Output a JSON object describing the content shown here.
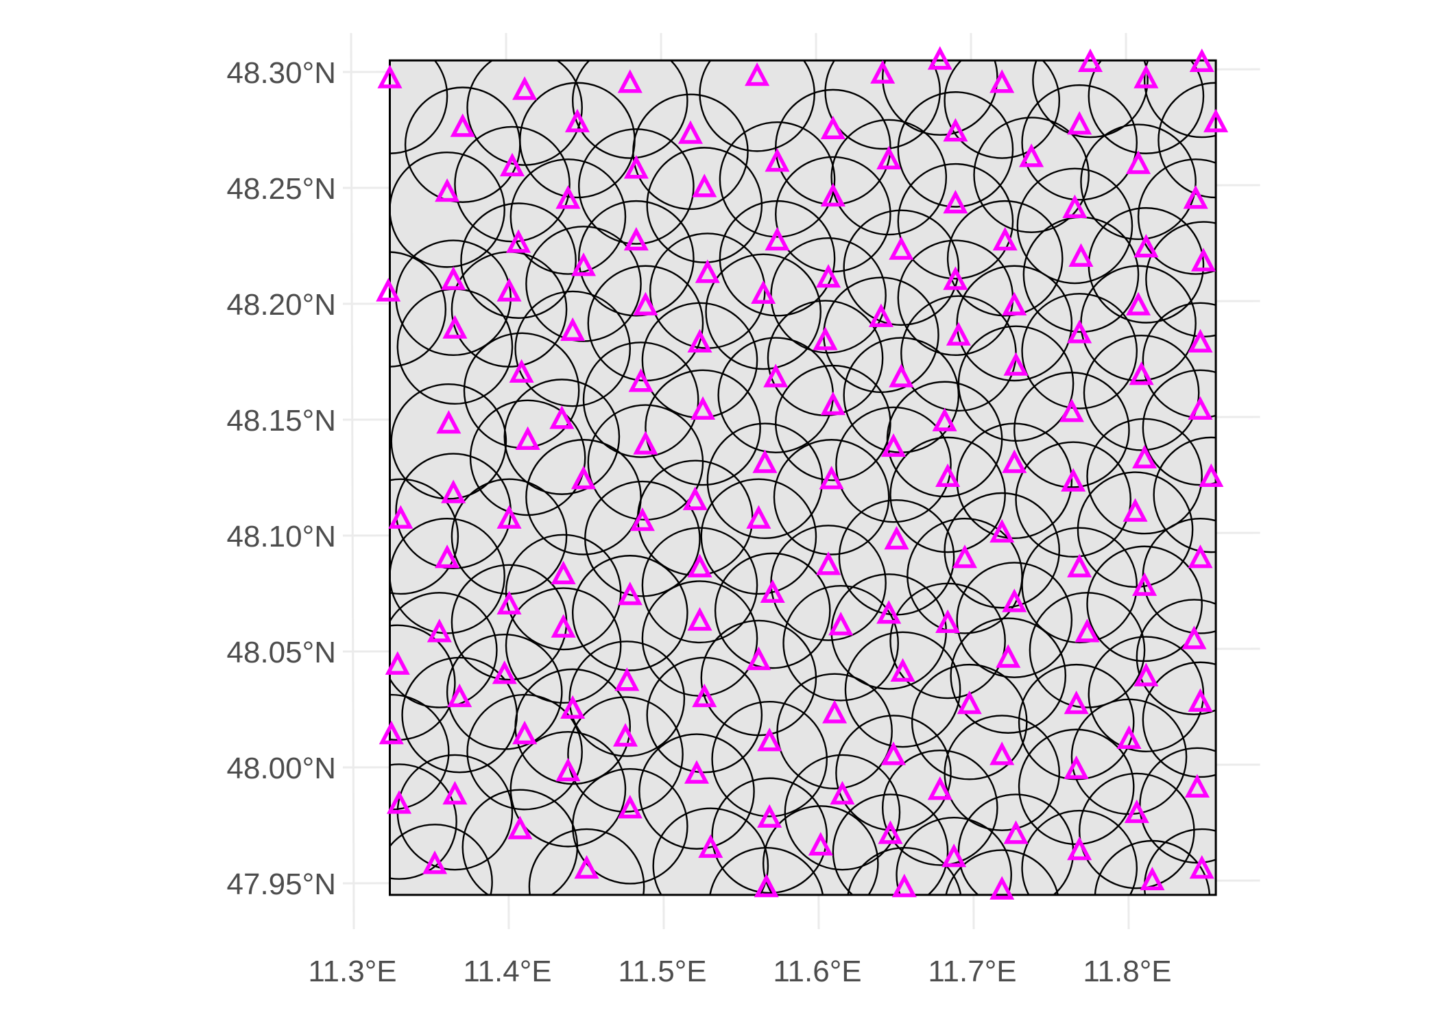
{
  "chart_data": {
    "type": "scatter",
    "title": "",
    "xlabel": "",
    "ylabel": "",
    "xlim": [
      11.3,
      11.86
    ],
    "ylim": [
      47.945,
      48.305
    ],
    "x_ticks": [
      {
        "value": 11.3,
        "label": "11.3°E"
      },
      {
        "value": 11.4,
        "label": "11.4°E"
      },
      {
        "value": 11.5,
        "label": "11.5°E"
      },
      {
        "value": 11.6,
        "label": "11.6°E"
      },
      {
        "value": 11.7,
        "label": "11.7°E"
      },
      {
        "value": 11.8,
        "label": "11.8°E"
      }
    ],
    "y_ticks": [
      {
        "value": 47.95,
        "label": "47.95°N"
      },
      {
        "value": 48.0,
        "label": "48.00°N"
      },
      {
        "value": 48.05,
        "label": "48.05°N"
      },
      {
        "value": 48.1,
        "label": "48.10°N"
      },
      {
        "value": 48.15,
        "label": "48.15°N"
      },
      {
        "value": 48.2,
        "label": "48.20°N"
      },
      {
        "value": 48.25,
        "label": "48.25°N"
      },
      {
        "value": 48.3,
        "label": "48.30°N"
      }
    ],
    "grid": true,
    "bbox_extent": {
      "lon": [
        11.325,
        11.858
      ],
      "lat": [
        47.945,
        48.305
      ]
    },
    "buffer_radius_deg_lon": 0.037,
    "colors": {
      "fill": "#e5e5e5",
      "buffer_stroke": "#000000",
      "point": "#ff00ff",
      "grid": "#ebebeb",
      "axis_text": "#4d4d4d"
    },
    "marker": "open-triangle",
    "points": [
      [
        11.325,
        48.297
      ],
      [
        11.412,
        48.292
      ],
      [
        11.48,
        48.295
      ],
      [
        11.562,
        48.298
      ],
      [
        11.643,
        48.299
      ],
      [
        11.68,
        48.305
      ],
      [
        11.72,
        48.295
      ],
      [
        11.777,
        48.304
      ],
      [
        11.813,
        48.297
      ],
      [
        11.849,
        48.304
      ],
      [
        11.372,
        48.276
      ],
      [
        11.446,
        48.278
      ],
      [
        11.519,
        48.273
      ],
      [
        11.611,
        48.275
      ],
      [
        11.69,
        48.274
      ],
      [
        11.77,
        48.277
      ],
      [
        11.858,
        48.278
      ],
      [
        11.404,
        48.259
      ],
      [
        11.484,
        48.258
      ],
      [
        11.575,
        48.261
      ],
      [
        11.647,
        48.262
      ],
      [
        11.739,
        48.263
      ],
      [
        11.808,
        48.26
      ],
      [
        11.362,
        48.248
      ],
      [
        11.44,
        48.245
      ],
      [
        11.528,
        48.25
      ],
      [
        11.611,
        48.246
      ],
      [
        11.69,
        48.243
      ],
      [
        11.767,
        48.241
      ],
      [
        11.845,
        48.245
      ],
      [
        11.408,
        48.226
      ],
      [
        11.484,
        48.227
      ],
      [
        11.575,
        48.227
      ],
      [
        11.655,
        48.223
      ],
      [
        11.722,
        48.227
      ],
      [
        11.771,
        48.22
      ],
      [
        11.813,
        48.224
      ],
      [
        11.85,
        48.218
      ],
      [
        11.324,
        48.205
      ],
      [
        11.366,
        48.21
      ],
      [
        11.402,
        48.205
      ],
      [
        11.45,
        48.216
      ],
      [
        11.53,
        48.213
      ],
      [
        11.566,
        48.204
      ],
      [
        11.608,
        48.211
      ],
      [
        11.69,
        48.21
      ],
      [
        11.728,
        48.199
      ],
      [
        11.808,
        48.199
      ],
      [
        11.49,
        48.199
      ],
      [
        11.642,
        48.194
      ],
      [
        11.367,
        48.189
      ],
      [
        11.443,
        48.188
      ],
      [
        11.525,
        48.183
      ],
      [
        11.606,
        48.184
      ],
      [
        11.692,
        48.186
      ],
      [
        11.77,
        48.187
      ],
      [
        11.848,
        48.183
      ],
      [
        11.41,
        48.17
      ],
      [
        11.487,
        48.166
      ],
      [
        11.574,
        48.168
      ],
      [
        11.655,
        48.168
      ],
      [
        11.729,
        48.173
      ],
      [
        11.81,
        48.169
      ],
      [
        11.363,
        48.148
      ],
      [
        11.436,
        48.15
      ],
      [
        11.527,
        48.154
      ],
      [
        11.611,
        48.156
      ],
      [
        11.683,
        48.149
      ],
      [
        11.765,
        48.153
      ],
      [
        11.848,
        48.154
      ],
      [
        11.414,
        48.141
      ],
      [
        11.49,
        48.139
      ],
      [
        11.567,
        48.131
      ],
      [
        11.65,
        48.138
      ],
      [
        11.728,
        48.131
      ],
      [
        11.812,
        48.133
      ],
      [
        11.366,
        48.118
      ],
      [
        11.45,
        48.124
      ],
      [
        11.522,
        48.115
      ],
      [
        11.61,
        48.124
      ],
      [
        11.685,
        48.125
      ],
      [
        11.766,
        48.123
      ],
      [
        11.855,
        48.125
      ],
      [
        11.332,
        48.107
      ],
      [
        11.402,
        48.107
      ],
      [
        11.488,
        48.106
      ],
      [
        11.563,
        48.107
      ],
      [
        11.72,
        48.101
      ],
      [
        11.806,
        48.11
      ],
      [
        11.362,
        48.09
      ],
      [
        11.437,
        48.083
      ],
      [
        11.525,
        48.086
      ],
      [
        11.608,
        48.087
      ],
      [
        11.652,
        48.098
      ],
      [
        11.696,
        48.09
      ],
      [
        11.77,
        48.086
      ],
      [
        11.848,
        48.09
      ],
      [
        11.402,
        48.07
      ],
      [
        11.48,
        48.074
      ],
      [
        11.572,
        48.075
      ],
      [
        11.647,
        48.066
      ],
      [
        11.728,
        48.071
      ],
      [
        11.812,
        48.078
      ],
      [
        11.357,
        48.058
      ],
      [
        11.437,
        48.06
      ],
      [
        11.525,
        48.063
      ],
      [
        11.616,
        48.061
      ],
      [
        11.685,
        48.062
      ],
      [
        11.775,
        48.058
      ],
      [
        11.844,
        48.055
      ],
      [
        11.33,
        48.044
      ],
      [
        11.399,
        48.04
      ],
      [
        11.478,
        48.037
      ],
      [
        11.563,
        48.046
      ],
      [
        11.656,
        48.041
      ],
      [
        11.724,
        48.047
      ],
      [
        11.813,
        48.039
      ],
      [
        11.37,
        48.03
      ],
      [
        11.443,
        48.025
      ],
      [
        11.528,
        48.03
      ],
      [
        11.612,
        48.023
      ],
      [
        11.699,
        48.027
      ],
      [
        11.768,
        48.027
      ],
      [
        11.848,
        48.028
      ],
      [
        11.326,
        48.014
      ],
      [
        11.412,
        48.014
      ],
      [
        11.477,
        48.013
      ],
      [
        11.57,
        48.011
      ],
      [
        11.65,
        48.005
      ],
      [
        11.72,
        48.005
      ],
      [
        11.802,
        48.012
      ],
      [
        11.44,
        47.998
      ],
      [
        11.523,
        47.997
      ],
      [
        11.617,
        47.988
      ],
      [
        11.68,
        47.99
      ],
      [
        11.768,
        47.999
      ],
      [
        11.846,
        47.991
      ],
      [
        11.331,
        47.984
      ],
      [
        11.367,
        47.988
      ],
      [
        11.409,
        47.973
      ],
      [
        11.48,
        47.982
      ],
      [
        11.57,
        47.978
      ],
      [
        11.648,
        47.971
      ],
      [
        11.729,
        47.971
      ],
      [
        11.807,
        47.98
      ],
      [
        11.354,
        47.958
      ],
      [
        11.452,
        47.956
      ],
      [
        11.532,
        47.965
      ],
      [
        11.603,
        47.966
      ],
      [
        11.689,
        47.961
      ],
      [
        11.77,
        47.964
      ],
      [
        11.849,
        47.956
      ],
      [
        11.568,
        47.948
      ],
      [
        11.657,
        47.948
      ],
      [
        11.72,
        47.947
      ],
      [
        11.817,
        47.951
      ]
    ]
  }
}
